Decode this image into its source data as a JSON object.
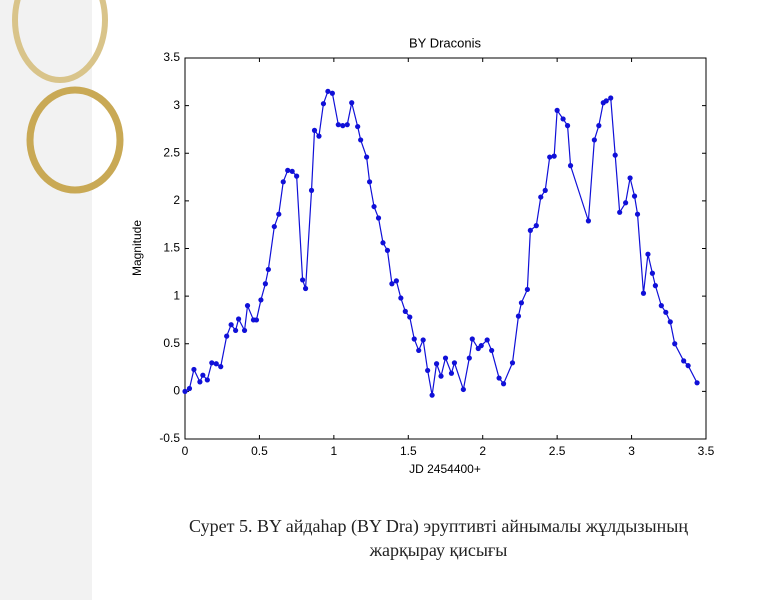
{
  "chart_data": {
    "type": "line",
    "title": "BY Draconis",
    "x_label": "JD 2454400+",
    "y_label": "Magnitude",
    "x": [
      0,
      0.03,
      0.06,
      0.1,
      0.12,
      0.15,
      0.18,
      0.21,
      0.24,
      0.28,
      0.31,
      0.34,
      0.36,
      0.4,
      0.42,
      0.46,
      0.48,
      0.51,
      0.54,
      0.56,
      0.6,
      0.63,
      0.66,
      0.69,
      0.72,
      0.75,
      0.79,
      0.81,
      0.85,
      0.87,
      0.9,
      0.93,
      0.96,
      0.99,
      1.03,
      1.06,
      1.09,
      1.12,
      1.16,
      1.18,
      1.22,
      1.24,
      1.27,
      1.3,
      1.33,
      1.36,
      1.39,
      1.42,
      1.45,
      1.48,
      1.51,
      1.54,
      1.57,
      1.6,
      1.63,
      1.66,
      1.69,
      1.72,
      1.75,
      1.79,
      1.81,
      1.87,
      1.91,
      1.93,
      1.97,
      1.99,
      2.03,
      2.06,
      2.11,
      2.14,
      2.2,
      2.24,
      2.26,
      2.3,
      2.32,
      2.36,
      2.39,
      2.42,
      2.45,
      2.48,
      2.5,
      2.54,
      2.57,
      2.59,
      2.71,
      2.75,
      2.78,
      2.81,
      2.83,
      2.86,
      2.89,
      2.92,
      2.96,
      2.99,
      3.02,
      3.04,
      3.08,
      3.11,
      3.14,
      3.16,
      3.2,
      3.23,
      3.26,
      3.29,
      3.35,
      3.38,
      3.44
    ],
    "series": [
      {
        "name": "BY Dra",
        "color": "#1010d8",
        "values": [
          0,
          0.03,
          0.23,
          0.1,
          0.17,
          0.12,
          0.3,
          0.29,
          0.26,
          0.58,
          0.7,
          0.64,
          0.76,
          0.64,
          0.9,
          0.75,
          0.75,
          0.96,
          1.13,
          1.28,
          1.73,
          1.86,
          2.2,
          2.32,
          2.31,
          2.26,
          1.17,
          1.08,
          2.11,
          2.74,
          2.68,
          3.02,
          3.15,
          3.13,
          2.8,
          2.79,
          2.8,
          3.03,
          2.78,
          2.64,
          2.46,
          2.2,
          1.94,
          1.82,
          1.56,
          1.48,
          1.13,
          1.16,
          0.98,
          0.84,
          0.78,
          0.55,
          0.43,
          0.54,
          0.22,
          -0.04,
          0.29,
          0.16,
          0.35,
          0.19,
          0.3,
          0.02,
          0.35,
          0.55,
          0.45,
          0.48,
          0.54,
          0.43,
          0.14,
          0.08,
          0.3,
          0.79,
          0.93,
          1.07,
          1.69,
          1.74,
          2.04,
          2.11,
          2.46,
          2.47,
          2.95,
          2.86,
          2.79,
          2.37,
          1.79,
          2.64,
          2.79,
          3.03,
          3.05,
          3.08,
          2.48,
          1.88,
          1.98,
          2.24,
          2.05,
          1.86,
          1.03,
          1.44,
          1.24,
          1.11,
          0.9,
          0.83,
          0.73,
          0.5,
          0.32,
          0.27,
          0.09
        ]
      }
    ],
    "xlim": [
      0,
      3.5
    ],
    "xticks": [
      0,
      0.5,
      1,
      1.5,
      2,
      2.5,
      3,
      3.5
    ],
    "ylim": [
      -0.5,
      3.5
    ],
    "yticks": [
      -0.5,
      0,
      0.5,
      1,
      1.5,
      2,
      2.5,
      3,
      3.5
    ]
  },
  "caption": {
    "line1": "Сурет 5. BY айдаһар (BY Dra) эруптивті айнымалы жұлдызының",
    "line2": "жарқырау қисығы"
  }
}
